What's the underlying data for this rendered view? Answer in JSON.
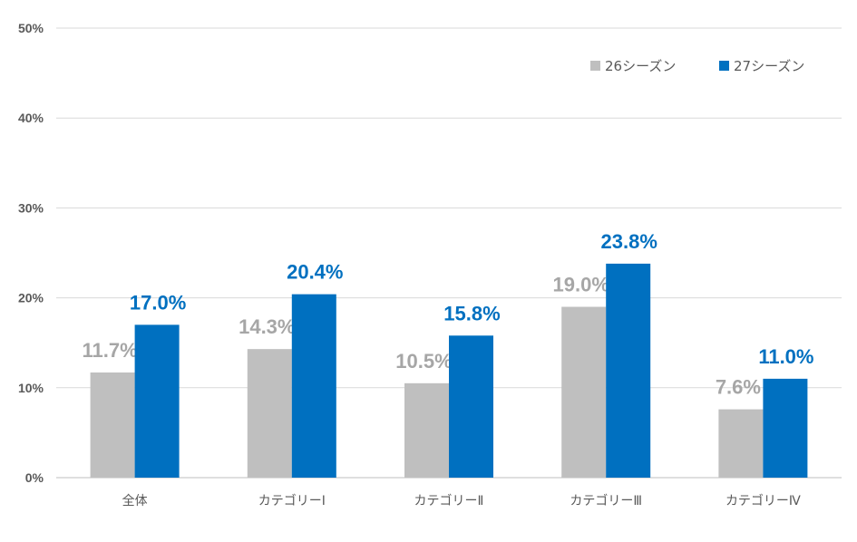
{
  "chart_data": {
    "type": "bar",
    "title": "",
    "xlabel": "",
    "ylabel": "",
    "ylim": [
      0,
      50
    ],
    "yticks": [
      "0%",
      "10%",
      "20%",
      "30%",
      "40%",
      "50%"
    ],
    "grid": true,
    "legend_placement": "top-right",
    "categories": [
      "全体",
      "カテゴリーⅠ",
      "カテゴリーⅡ",
      "カテゴリーⅢ",
      "カテゴリーⅣ"
    ],
    "series": [
      {
        "name": "26シーズン",
        "color": "#BFBFBF",
        "label_color": "#A6A6A6",
        "values": [
          11.7,
          14.3,
          10.5,
          19.0,
          7.6
        ],
        "labels": [
          "11.7%",
          "14.3%",
          "10.5%",
          "19.0%",
          "7.6%"
        ]
      },
      {
        "name": "27シーズン",
        "color": "#0070C0",
        "label_color": "#0070C0",
        "values": [
          17.0,
          20.4,
          15.8,
          23.8,
          11.0
        ],
        "labels": [
          "17.0%",
          "20.4%",
          "15.8%",
          "23.8%",
          "11.0%"
        ]
      }
    ]
  }
}
